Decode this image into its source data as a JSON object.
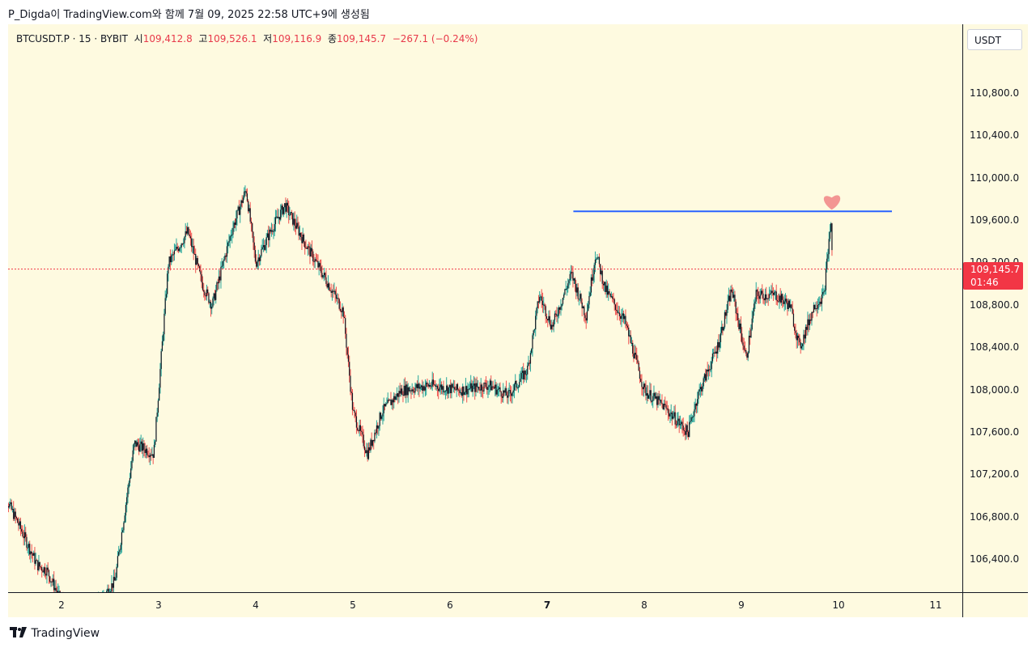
{
  "header": {
    "author_line": "P_Digda이 TradingView.com와 함께 7월 09, 2025 22:58 UTC+9에 생성됨"
  },
  "info": {
    "symbol": "BTCUSDT.P · 15 · BYBIT",
    "open_label": "시",
    "open": "109,412.8",
    "high_label": "고",
    "high": "109,526.1",
    "low_label": "저",
    "low": "109,116.9",
    "close_label": "종",
    "close": "109,145.7",
    "change": "−267.1 (−0.24%)"
  },
  "currency_button": "USDT",
  "price_tag": {
    "price": "109,145.7",
    "countdown": "01:46"
  },
  "footer": {
    "logo_text": "TradingView"
  },
  "colors": {
    "up": "#26a69a",
    "down": "#ef5350",
    "candle": "#131722",
    "resistance": "#2962ff",
    "price_line": "#f23645",
    "heart": "#f28b8b",
    "background": "#fefae0"
  },
  "chart_data": {
    "type": "candlestick",
    "title": "BTCUSDT.P · 15 · BYBIT",
    "y_ticks": [
      "110,800.0",
      "110,400.0",
      "110,000.0",
      "109,600.0",
      "109,200.0",
      "108,800.0",
      "108,400.0",
      "108,000.0",
      "107,600.0",
      "107,200.0",
      "106,800.0",
      "106,400.0"
    ],
    "x_ticks": [
      "2",
      "3",
      "4",
      "5",
      "6",
      "7",
      "8",
      "9",
      "10",
      "11"
    ],
    "ylim": [
      106150,
      111450
    ],
    "last_price": 109145.7,
    "resistance_level": 109690,
    "price_path": [
      {
        "x": 1.35,
        "y": 107120
      },
      {
        "x": 1.55,
        "y": 106750
      },
      {
        "x": 1.75,
        "y": 106350
      },
      {
        "x": 1.85,
        "y": 106300
      },
      {
        "x": 2.0,
        "y": 106000
      },
      {
        "x": 2.3,
        "y": 105900
      },
      {
        "x": 2.55,
        "y": 106200
      },
      {
        "x": 2.75,
        "y": 107500
      },
      {
        "x": 2.95,
        "y": 107400
      },
      {
        "x": 3.1,
        "y": 109200
      },
      {
        "x": 3.3,
        "y": 109500
      },
      {
        "x": 3.45,
        "y": 109000
      },
      {
        "x": 3.55,
        "y": 108800
      },
      {
        "x": 3.75,
        "y": 109500
      },
      {
        "x": 3.9,
        "y": 109900
      },
      {
        "x": 4.0,
        "y": 109200
      },
      {
        "x": 4.15,
        "y": 109500
      },
      {
        "x": 4.3,
        "y": 109750
      },
      {
        "x": 4.5,
        "y": 109400
      },
      {
        "x": 4.75,
        "y": 109000
      },
      {
        "x": 4.9,
        "y": 108750
      },
      {
        "x": 5.0,
        "y": 107800
      },
      {
        "x": 5.15,
        "y": 107400
      },
      {
        "x": 5.3,
        "y": 107800
      },
      {
        "x": 5.5,
        "y": 108000
      },
      {
        "x": 5.8,
        "y": 108050
      },
      {
        "x": 6.1,
        "y": 108000
      },
      {
        "x": 6.4,
        "y": 108050
      },
      {
        "x": 6.6,
        "y": 107950
      },
      {
        "x": 6.8,
        "y": 108200
      },
      {
        "x": 6.92,
        "y": 108900
      },
      {
        "x": 7.05,
        "y": 108600
      },
      {
        "x": 7.25,
        "y": 109100
      },
      {
        "x": 7.4,
        "y": 108700
      },
      {
        "x": 7.5,
        "y": 109300
      },
      {
        "x": 7.6,
        "y": 108950
      },
      {
        "x": 7.8,
        "y": 108650
      },
      {
        "x": 8.0,
        "y": 108000
      },
      {
        "x": 8.2,
        "y": 107850
      },
      {
        "x": 8.45,
        "y": 107600
      },
      {
        "x": 8.55,
        "y": 107950
      },
      {
        "x": 8.75,
        "y": 108400
      },
      {
        "x": 8.9,
        "y": 108950
      },
      {
        "x": 9.05,
        "y": 108300
      },
      {
        "x": 9.15,
        "y": 108900
      },
      {
        "x": 9.35,
        "y": 108900
      },
      {
        "x": 9.5,
        "y": 108800
      },
      {
        "x": 9.6,
        "y": 108400
      },
      {
        "x": 9.75,
        "y": 108800
      },
      {
        "x": 9.85,
        "y": 108900
      },
      {
        "x": 9.92,
        "y": 109600
      },
      {
        "x": 9.94,
        "y": 109200
      }
    ]
  }
}
